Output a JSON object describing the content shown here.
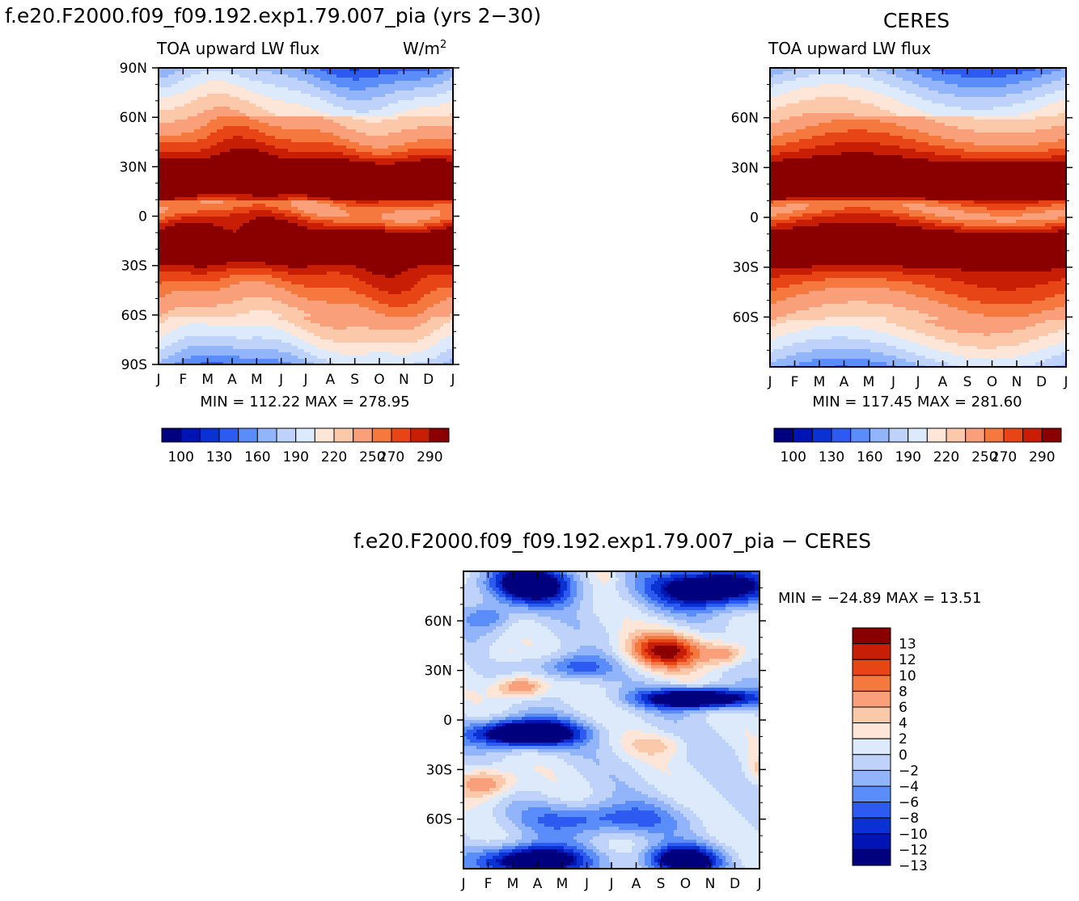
{
  "colors": {
    "abs_scale": [
      "#00007f",
      "#0014b4",
      "#0a32d2",
      "#2d5af0",
      "#5a8cfa",
      "#91b4fa",
      "#bed2fa",
      "#dceafc",
      "#fde6d8",
      "#fcc8aa",
      "#f9a07a",
      "#f5783f",
      "#e84516",
      "#c81e05",
      "#8a0000"
    ],
    "diff_scale": [
      "#00007f",
      "#0014b4",
      "#0a32d2",
      "#2d5af0",
      "#5a8cfa",
      "#91b4fa",
      "#bed2fa",
      "#dceafc",
      "#fde6d8",
      "#fcc8aa",
      "#f9a07a",
      "#f5783f",
      "#e84516",
      "#c81e05",
      "#8a0000"
    ]
  },
  "header": {
    "left_title": "f.e20.F2000.f09_f09.192.exp1.79.007_pia (yrs 2−30)",
    "right_title": "CERES",
    "diff_title": "f.e20.F2000.f09_f09.192.exp1.79.007_pia − CERES"
  },
  "chart_data": [
    {
      "type": "heatmap",
      "panel": "model",
      "title": "f.e20.F2000.f09_f09.192.exp1.79.007_pia (yrs 2−30)",
      "subtitle": "TOA upward LW flux",
      "units": "W/m",
      "units_sup": "2",
      "x_ticks": [
        "J",
        "F",
        "M",
        "A",
        "M",
        "J",
        "J",
        "A",
        "S",
        "O",
        "N",
        "D",
        "J"
      ],
      "y_ticks": [
        "90N",
        "60N",
        "30N",
        "0",
        "30S",
        "60S",
        "90S"
      ],
      "min_max": "MIN = 112.22 MAX = 278.95",
      "min": 112.22,
      "max": 278.95,
      "colorbar_labels": [
        "100",
        "130",
        "160",
        "190",
        "220",
        "250",
        "270",
        "290"
      ],
      "colorbar_levels": [
        100,
        115,
        130,
        145,
        160,
        175,
        190,
        205,
        220,
        235,
        250,
        260,
        270,
        280,
        290
      ]
    },
    {
      "type": "heatmap",
      "panel": "obs",
      "title": "CERES",
      "subtitle": "TOA upward LW flux",
      "x_ticks": [
        "J",
        "F",
        "M",
        "A",
        "M",
        "J",
        "J",
        "A",
        "S",
        "O",
        "N",
        "D",
        "J"
      ],
      "y_ticks": [
        "60N",
        "30N",
        "0",
        "30S",
        "60S"
      ],
      "min_max": "MIN = 117.45 MAX = 281.60",
      "min": 117.45,
      "max": 281.6,
      "colorbar_labels": [
        "100",
        "130",
        "160",
        "190",
        "220",
        "250",
        "270",
        "290"
      ],
      "colorbar_levels": [
        100,
        115,
        130,
        145,
        160,
        175,
        190,
        205,
        220,
        235,
        250,
        260,
        270,
        280,
        290
      ]
    },
    {
      "type": "heatmap",
      "panel": "difference",
      "title": "f.e20.F2000.f09_f09.192.exp1.79.007_pia − CERES",
      "x_ticks": [
        "J",
        "F",
        "M",
        "A",
        "M",
        "J",
        "J",
        "A",
        "S",
        "O",
        "N",
        "D",
        "J"
      ],
      "y_ticks": [
        "60N",
        "30N",
        "0",
        "30S",
        "60S"
      ],
      "min_max": "MIN = −24.89 MAX =  13.51",
      "min": -24.89,
      "max": 13.51,
      "colorbar_labels": [
        "13",
        "12",
        "10",
        "8",
        "6",
        "4",
        "2",
        "0",
        "−2",
        "−4",
        "−6",
        "−8",
        "−10",
        "−12",
        "−13"
      ]
    }
  ]
}
